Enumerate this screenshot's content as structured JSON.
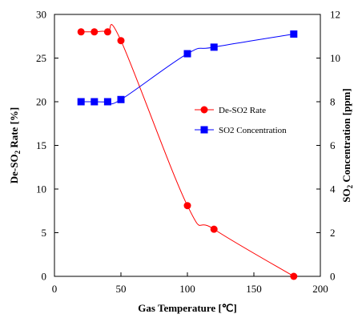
{
  "chart_data": {
    "type": "line",
    "xlabel": "Gas Temperature [℃]",
    "ylabel": {
      "pre": "De-SO",
      "sub": "2",
      "post": " Rate [%]"
    },
    "y2label": {
      "pre": "SO",
      "sub": "2",
      "post": " Concentration [ppm]"
    },
    "xlim": [
      0,
      200
    ],
    "ylim": [
      0,
      30
    ],
    "y2lim": [
      0,
      12
    ],
    "xticks": [
      0,
      50,
      100,
      150,
      200
    ],
    "yticks": [
      0,
      5,
      10,
      15,
      20,
      25,
      30
    ],
    "y2ticks": [
      0,
      2,
      4,
      6,
      8,
      10,
      12
    ],
    "legend": {
      "placement": "right-middle"
    },
    "series": [
      {
        "name": "De-SO2 Rate",
        "axis": "left",
        "color": "#ff0000",
        "marker": "circle",
        "x": [
          20,
          30,
          40,
          50,
          100,
          120,
          180
        ],
        "y": [
          28,
          28,
          28,
          27,
          8.1,
          5.4,
          0
        ]
      },
      {
        "name": "SO2 Concentration",
        "axis": "right",
        "color": "#0000ff",
        "marker": "square",
        "x": [
          20,
          30,
          40,
          50,
          100,
          120,
          180
        ],
        "y": [
          8.0,
          8.0,
          8.0,
          8.1,
          10.2,
          10.5,
          11.1
        ]
      }
    ]
  }
}
